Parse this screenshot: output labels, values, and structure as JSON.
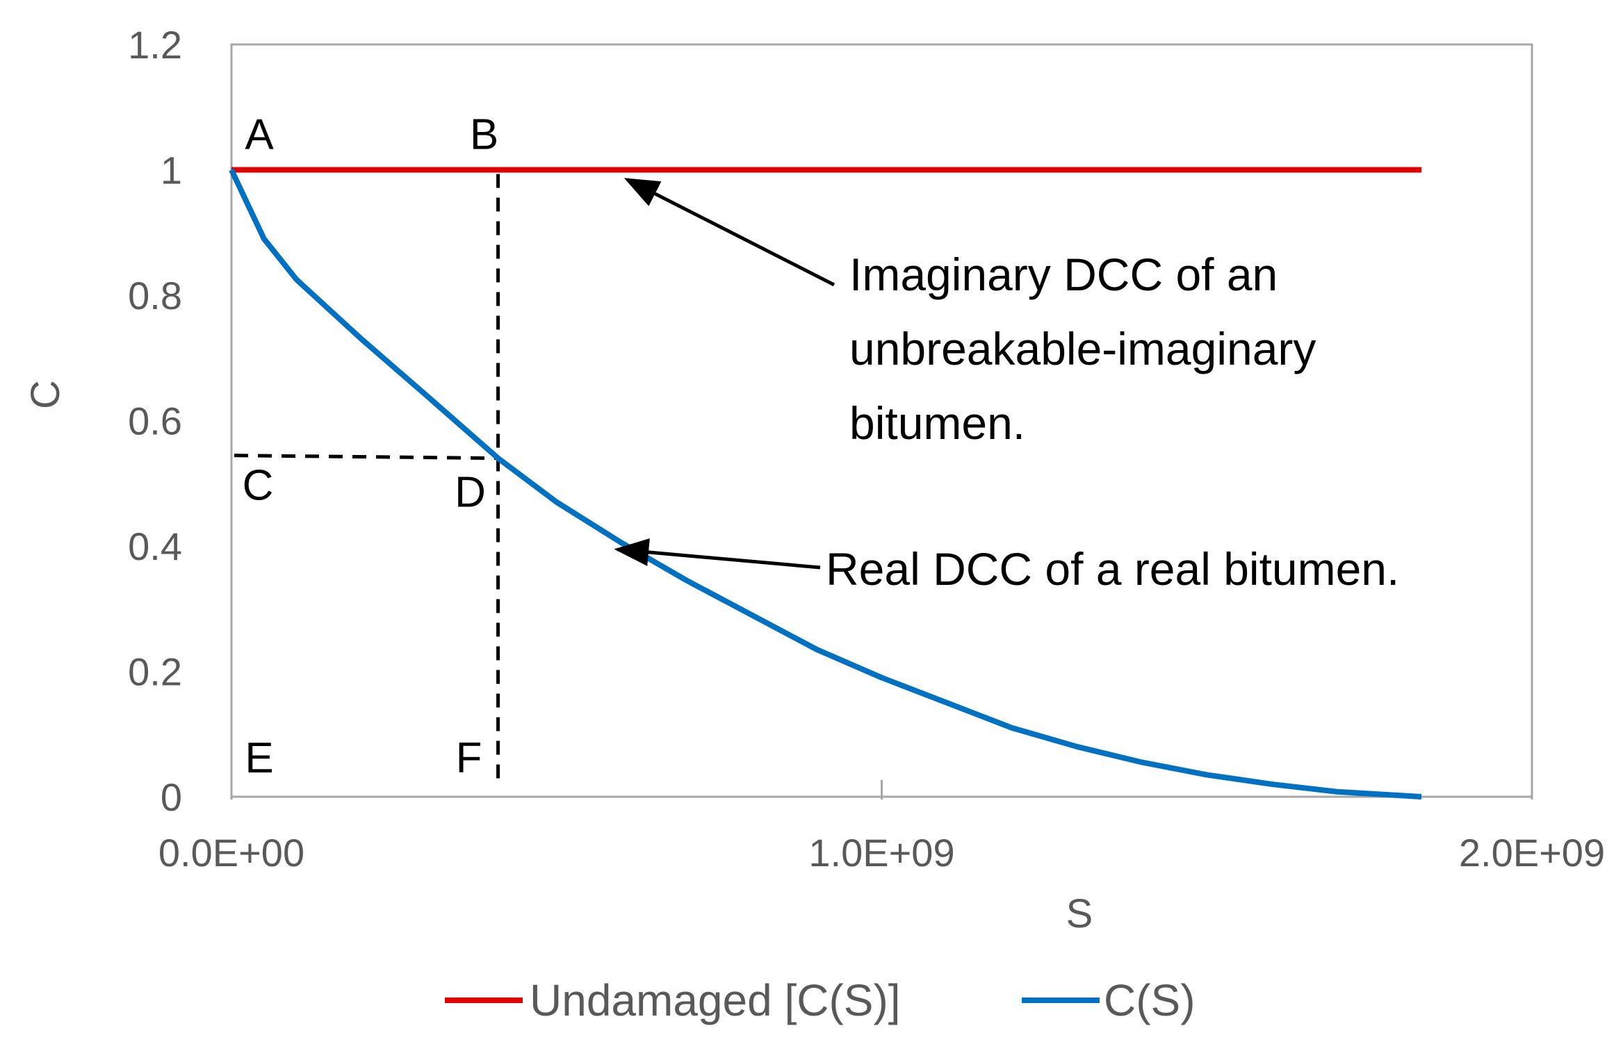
{
  "chart_data": {
    "type": "line",
    "title": "",
    "xlabel": "S",
    "ylabel": "C",
    "xlim": [
      0,
      2000000000
    ],
    "ylim": [
      0,
      1.2
    ],
    "x_ticks": [
      0,
      1000000000,
      2000000000
    ],
    "x_tick_labels": [
      "0.0E+00",
      "1.0E+09",
      "2.0E+09"
    ],
    "y_ticks": [
      0,
      0.2,
      0.4,
      0.6,
      0.8,
      1,
      1.2
    ],
    "y_tick_labels": [
      "0",
      "0.2",
      "0.4",
      "0.6",
      "0.8",
      "1",
      "1.2"
    ],
    "grid": false,
    "legend_position": "bottom",
    "series": [
      {
        "name": "Undamaged [C(S)]",
        "color": "#e00000",
        "x": [
          0,
          1830000000
        ],
        "y": [
          1,
          1
        ]
      },
      {
        "name": "C(S)",
        "color": "#0070c0",
        "x": [
          0,
          50000000,
          100000000,
          200000000,
          300000000,
          410000000,
          500000000,
          600000000,
          700000000,
          800000000,
          900000000,
          1000000000,
          1100000000,
          1200000000,
          1300000000,
          1400000000,
          1500000000,
          1600000000,
          1700000000,
          1830000000
        ],
        "y": [
          1,
          0.89,
          0.825,
          0.73,
          0.64,
          0.54,
          0.47,
          0.405,
          0.345,
          0.29,
          0.235,
          0.19,
          0.15,
          0.11,
          0.08,
          0.055,
          0.035,
          0.02,
          0.008,
          0
        ]
      }
    ],
    "guides": {
      "color": "#000000",
      "x_value": 410000000,
      "y_value": 0.54
    },
    "point_labels": [
      {
        "text": "A",
        "x": 0,
        "y": 1
      },
      {
        "text": "B",
        "x": 410000000,
        "y": 1
      },
      {
        "text": "C",
        "x": 0,
        "y": 0.54
      },
      {
        "text": "D",
        "x": 410000000,
        "y": 0.54
      },
      {
        "text": "E",
        "x": 0,
        "y": 0
      },
      {
        "text": "F",
        "x": 410000000,
        "y": 0
      }
    ],
    "annotations": [
      {
        "lines": [
          "Imaginary DCC of an",
          "unbreakable-imaginary",
          "bitumen."
        ],
        "target": {
          "x": 600000000,
          "y": 1
        }
      },
      {
        "lines": [
          "Real DCC of a real  bitumen."
        ],
        "target": {
          "x": 585000000,
          "y": 0.41
        }
      }
    ]
  }
}
